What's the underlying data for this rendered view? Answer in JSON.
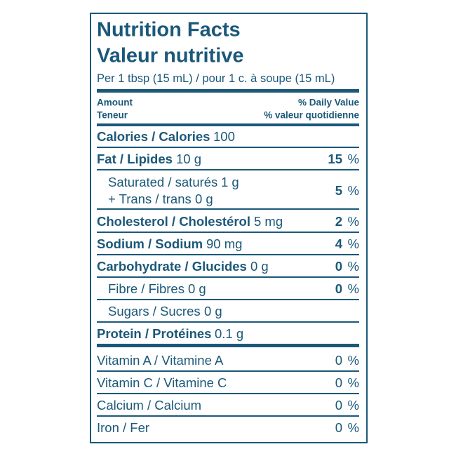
{
  "header": {
    "title": "Nutrition Facts",
    "title_fr": "Valeur nutritive",
    "serving": "Per 1 tbsp (15 mL) / pour 1 c. à soupe (15 mL)"
  },
  "columns": {
    "amount": "Amount",
    "amount_fr": "Teneur",
    "dv": "% Daily Value",
    "dv_fr": "% valeur quotidienne"
  },
  "nutrients": [
    {
      "name": "Calories / Calories",
      "amount": "100"
    },
    {
      "name": "Fat / Lipides",
      "amount": "10 g",
      "dv": "15",
      "unit": "%"
    },
    {
      "name": "Saturated / saturés",
      "amount": "1 g",
      "name2": "+ Trans / trans",
      "amount2": "0 g",
      "dv": "5",
      "unit": "%"
    },
    {
      "name": "Cholesterol / Cholestérol",
      "amount": "5 mg",
      "dv": "2",
      "unit": "%"
    },
    {
      "name": "Sodium / Sodium",
      "amount": "90 mg",
      "dv": "4",
      "unit": "%"
    },
    {
      "name": "Carbohydrate / Glucides",
      "amount": "0 g",
      "dv": "0",
      "unit": "%"
    },
    {
      "name": "Fibre / Fibres",
      "amount": "0 g",
      "dv": "0",
      "unit": "%"
    },
    {
      "name": "Sugars / Sucres",
      "amount": "0 g"
    },
    {
      "name": "Protein / Protéines",
      "amount": "0.1 g"
    },
    {
      "name": "Vitamin A / Vitamine A",
      "dv": "0",
      "unit": "%"
    },
    {
      "name": "Vitamin C / Vitamine C",
      "dv": "0",
      "unit": "%"
    },
    {
      "name": "Calcium / Calcium",
      "dv": "0",
      "unit": "%"
    },
    {
      "name": "Iron / Fer",
      "dv": "0",
      "unit": "%"
    }
  ]
}
